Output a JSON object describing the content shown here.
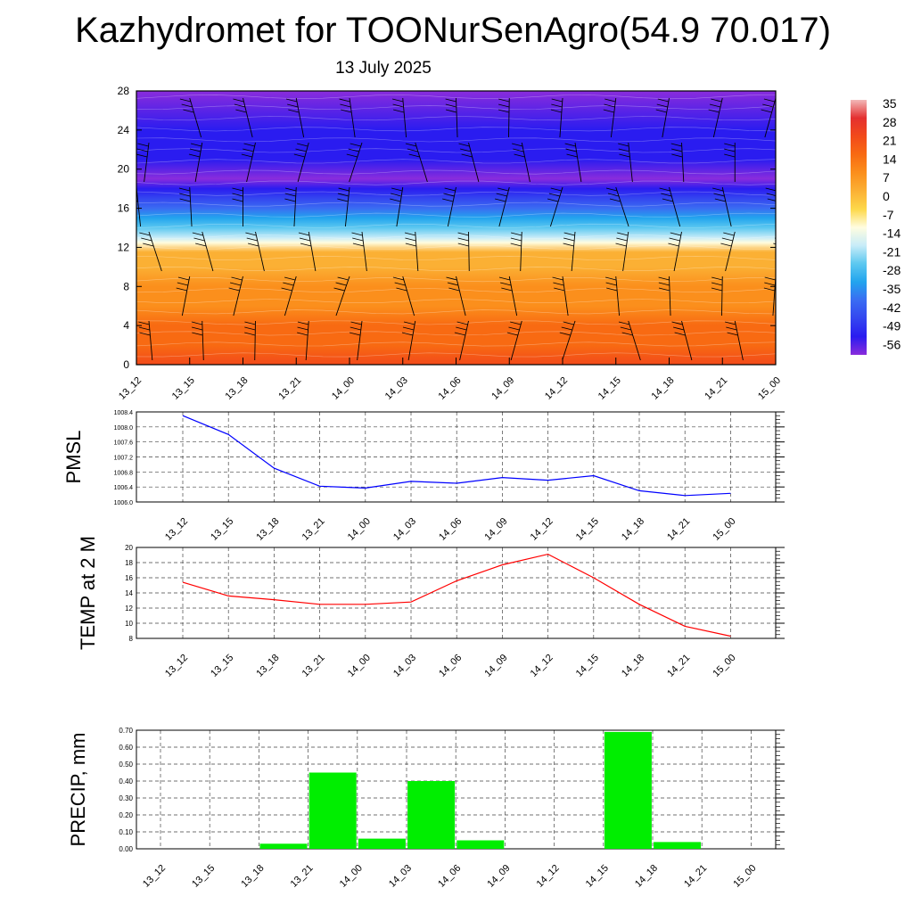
{
  "page": {
    "title": "Kazhydromet for TOONurSenAgro(54.9 70.017)",
    "date": "13 July 2025"
  },
  "colors": {
    "pmsl_line": "#0000ff",
    "temp_line": "#ff0000",
    "precip_bar": "#00ee00",
    "barb": "#000000"
  },
  "chart_data": [
    {
      "type": "heatmap",
      "name": "vertical-section",
      "title": "",
      "x": [
        "13_12",
        "13_15",
        "13_18",
        "13_21",
        "14_00",
        "14_03",
        "14_06",
        "14_09",
        "14_12",
        "14_15",
        "14_18",
        "14_21",
        "15_00"
      ],
      "ylim": [
        0,
        28
      ],
      "yticks": [
        0,
        4,
        8,
        12,
        16,
        20,
        24,
        28
      ],
      "colorbar": {
        "labels": [
          "35",
          "28",
          "21",
          "14",
          "7",
          "0",
          "-7",
          "-14",
          "-21",
          "-28",
          "-35",
          "-42",
          "-49",
          "-56"
        ],
        "gradient": [
          "#f2b8b8",
          "#e43030",
          "#f24a1a",
          "#f86a12",
          "#fb8f1c",
          "#fbb034",
          "#fdd84a",
          "#fffde0",
          "#c8ecf8",
          "#5cc8f0",
          "#22a4ee",
          "#3a6cf2",
          "#3446f0",
          "#2a1cf0",
          "#8a2cdc"
        ]
      },
      "temperature_profile": [
        {
          "z": 0,
          "t": 20
        },
        {
          "z": 2,
          "t": 17
        },
        {
          "z": 4,
          "t": 14
        },
        {
          "z": 6,
          "t": 11
        },
        {
          "z": 8,
          "t": 8
        },
        {
          "z": 10,
          "t": 4
        },
        {
          "z": 11.5,
          "t": 1
        },
        {
          "z": 12.5,
          "t": -8
        },
        {
          "z": 13,
          "t": -16
        },
        {
          "z": 14,
          "t": -24
        },
        {
          "z": 15,
          "t": -30
        },
        {
          "z": 16,
          "t": -36
        },
        {
          "z": 17,
          "t": -42
        },
        {
          "z": 18,
          "t": -48
        },
        {
          "z": 19,
          "t": -53
        },
        {
          "z": 21,
          "t": -47
        },
        {
          "z": 24,
          "t": -52
        },
        {
          "z": 28,
          "t": -55
        }
      ],
      "wind_barbs": "present"
    },
    {
      "type": "line",
      "name": "pmsl",
      "ylabel": "PMSL",
      "x": [
        "13_12",
        "13_15",
        "13_18",
        "13_21",
        "14_00",
        "14_03",
        "14_06",
        "14_09",
        "14_12",
        "14_15",
        "14_18",
        "14_21",
        "15_00"
      ],
      "series": [
        {
          "values": [
            1008.3,
            1007.8,
            1006.9,
            1006.42,
            1006.37,
            1006.55,
            1006.5,
            1006.65,
            1006.58,
            1006.7,
            1006.3,
            1006.17,
            1006.23
          ]
        }
      ],
      "ylim": [
        1006.0,
        1008.4
      ],
      "yticks": [
        "1006.0",
        "1006.4",
        "1006.8",
        "1007.2",
        "1007.6",
        "1008.0",
        "1008.4"
      ],
      "grid": true
    },
    {
      "type": "line",
      "name": "temp",
      "ylabel": "TEMP at 2 M",
      "x": [
        "13_12",
        "13_15",
        "13_18",
        "13_21",
        "14_00",
        "14_03",
        "14_06",
        "14_09",
        "14_12",
        "14_15",
        "14_18",
        "14_21",
        "15_00"
      ],
      "series": [
        {
          "values": [
            15.4,
            13.6,
            13.1,
            12.5,
            12.5,
            12.8,
            15.6,
            17.7,
            19.1,
            16.0,
            12.5,
            9.6,
            8.3
          ]
        }
      ],
      "ylim": [
        8,
        20
      ],
      "yticks": [
        "8",
        "10",
        "12",
        "14",
        "16",
        "18",
        "20"
      ],
      "grid": true
    },
    {
      "type": "bar",
      "name": "precip",
      "ylabel": "PRECIP, mm",
      "categories": [
        "13_12",
        "13_15",
        "13_18",
        "13_21",
        "14_00",
        "14_03",
        "14_06",
        "14_09",
        "14_12",
        "14_15",
        "14_18",
        "14_21",
        "15_00"
      ],
      "values": [
        0,
        0,
        0.03,
        0.45,
        0.06,
        0.4,
        0.05,
        0,
        0,
        0.69,
        0.04,
        0,
        0
      ],
      "ylim": [
        0,
        0.7
      ],
      "yticks": [
        "0.00",
        "0.10",
        "0.20",
        "0.30",
        "0.40",
        "0.50",
        "0.60",
        "0.70"
      ],
      "grid": true
    }
  ]
}
